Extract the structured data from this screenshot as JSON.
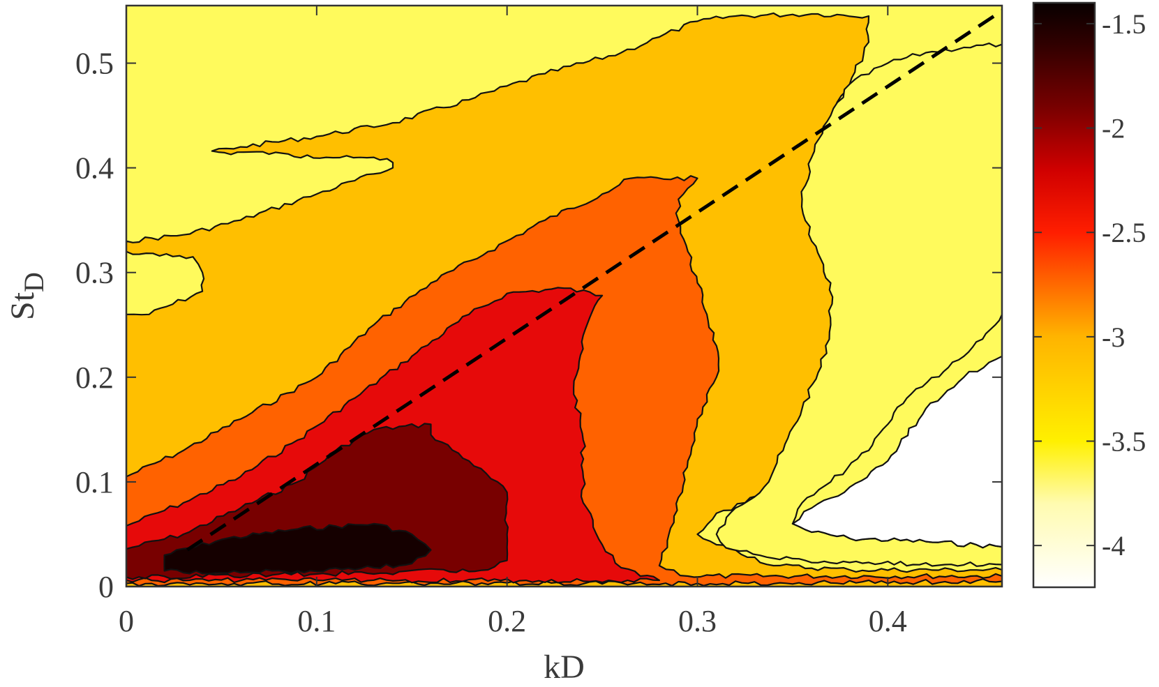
{
  "chart_data": {
    "type": "heatmap",
    "subtype": "filled-contour",
    "xlabel": "kD",
    "ylabel_main": "St",
    "ylabel_sub": "D",
    "xlim": [
      0,
      0.46
    ],
    "ylim": [
      0,
      0.555
    ],
    "x_ticks": [
      {
        "value": 0,
        "label": "0"
      },
      {
        "value": 0.1,
        "label": "0.1"
      },
      {
        "value": 0.2,
        "label": "0.2"
      },
      {
        "value": 0.3,
        "label": "0.3"
      },
      {
        "value": 0.4,
        "label": "0.4"
      }
    ],
    "y_ticks": [
      {
        "value": 0,
        "label": "0"
      },
      {
        "value": 0.1,
        "label": "0.1"
      },
      {
        "value": 0.2,
        "label": "0.2"
      },
      {
        "value": 0.3,
        "label": "0.3"
      },
      {
        "value": 0.4,
        "label": "0.4"
      },
      {
        "value": 0.5,
        "label": "0.5"
      }
    ],
    "colorbar": {
      "range": [
        -4.2,
        -1.4
      ],
      "ticks": [
        {
          "value": -1.5,
          "label": "-1.5"
        },
        {
          "value": -2,
          "label": "-2"
        },
        {
          "value": -2.5,
          "label": "-2.5"
        },
        {
          "value": -3,
          "label": "-3"
        },
        {
          "value": -3.5,
          "label": "-3.5"
        },
        {
          "value": -4,
          "label": "-4"
        }
      ],
      "colormap": "hot-reversed",
      "placement": "right"
    },
    "levels": [
      {
        "level": -4.0,
        "color": "#ffffff"
      },
      {
        "level": -3.5,
        "color": "#fffa5c"
      },
      {
        "level": -3.0,
        "color": "#ffbf00"
      },
      {
        "level": -2.5,
        "color": "#ff6200"
      },
      {
        "level": -2.0,
        "color": "#e60a0a"
      },
      {
        "level": -1.75,
        "color": "#780000"
      },
      {
        "level": -1.5,
        "color": "#150000"
      }
    ],
    "contour_bands": [
      {
        "level_index": 2,
        "boundary": [
          [
            0,
            0.26
          ],
          [
            0.012,
            0.26
          ],
          [
            0.04,
            0.282
          ],
          [
            0.04,
            0.3
          ],
          [
            0.035,
            0.315
          ],
          [
            0,
            0.32
          ],
          [
            0,
            0.33
          ],
          [
            0.03,
            0.336
          ],
          [
            0.06,
            0.35
          ],
          [
            0.1,
            0.375
          ],
          [
            0.14,
            0.4
          ],
          [
            0.14,
            0.405
          ],
          [
            0.13,
            0.41
          ],
          [
            0.105,
            0.41
          ],
          [
            0.075,
            0.413
          ],
          [
            0.045,
            0.416
          ],
          [
            0.06,
            0.42
          ],
          [
            0.1,
            0.43
          ],
          [
            0.14,
            0.443
          ],
          [
            0.18,
            0.465
          ],
          [
            0.22,
            0.49
          ],
          [
            0.26,
            0.51
          ],
          [
            0.28,
            0.525
          ],
          [
            0.3,
            0.54
          ],
          [
            0.32,
            0.545
          ],
          [
            0.36,
            0.547
          ],
          [
            0.39,
            0.545
          ],
          [
            0.39,
            0.52
          ],
          [
            0.38,
            0.48
          ],
          [
            0.37,
            0.45
          ],
          [
            0.36,
            0.4
          ],
          [
            0.36,
            0.36
          ],
          [
            0.365,
            0.32
          ],
          [
            0.375,
            0.28
          ],
          [
            0.38,
            0.25
          ],
          [
            0.375,
            0.22
          ],
          [
            0.365,
            0.19
          ],
          [
            0.35,
            0.14
          ],
          [
            0.34,
            0.1
          ],
          [
            0.325,
            0.08
          ],
          [
            0.31,
            0.07
          ],
          [
            0.3,
            0.05
          ],
          [
            0.31,
            0.04
          ],
          [
            0.32,
            0.035
          ],
          [
            0.34,
            0.02
          ],
          [
            0.38,
            0.016
          ],
          [
            0.46,
            0.016
          ],
          [
            0.46,
            0
          ],
          [
            0,
            0
          ]
        ]
      },
      {
        "level_index": 1,
        "boundary": [
          [
            0.35,
            0.06
          ],
          [
            0.36,
            0.052
          ],
          [
            0.38,
            0.046
          ],
          [
            0.42,
            0.043
          ],
          [
            0.46,
            0.038
          ],
          [
            0.46,
            0.021
          ],
          [
            0.43,
            0.021
          ],
          [
            0.38,
            0.023
          ],
          [
            0.34,
            0.027
          ],
          [
            0.315,
            0.037
          ],
          [
            0.31,
            0.05
          ],
          [
            0.32,
            0.075
          ],
          [
            0.335,
            0.095
          ],
          [
            0.345,
            0.13
          ],
          [
            0.355,
            0.17
          ],
          [
            0.365,
            0.21
          ],
          [
            0.37,
            0.25
          ],
          [
            0.37,
            0.29
          ],
          [
            0.36,
            0.33
          ],
          [
            0.355,
            0.37
          ],
          [
            0.36,
            0.41
          ],
          [
            0.37,
            0.45
          ],
          [
            0.38,
            0.48
          ],
          [
            0.4,
            0.5
          ],
          [
            0.42,
            0.51
          ],
          [
            0.44,
            0.515
          ],
          [
            0.46,
            0.518
          ],
          [
            0.46,
            0.26
          ],
          [
            0.44,
            0.22
          ],
          [
            0.41,
            0.18
          ],
          [
            0.39,
            0.13
          ],
          [
            0.37,
            0.1
          ],
          [
            0.355,
            0.08
          ]
        ]
      },
      {
        "level_index": 0,
        "boundary": [
          [
            0.35,
            0.06
          ],
          [
            0.36,
            0.052
          ],
          [
            0.38,
            0.046
          ],
          [
            0.42,
            0.043
          ],
          [
            0.46,
            0.038
          ],
          [
            0.46,
            0.22
          ],
          [
            0.44,
            0.2
          ],
          [
            0.42,
            0.17
          ],
          [
            0.4,
            0.12
          ],
          [
            0.38,
            0.095
          ],
          [
            0.36,
            0.075
          ]
        ]
      },
      {
        "level_index": 3,
        "boundary": [
          [
            0,
            0.06
          ],
          [
            0,
            0.105
          ],
          [
            0.03,
            0.13
          ],
          [
            0.06,
            0.16
          ],
          [
            0.1,
            0.2
          ],
          [
            0.13,
            0.25
          ],
          [
            0.16,
            0.29
          ],
          [
            0.19,
            0.32
          ],
          [
            0.22,
            0.35
          ],
          [
            0.25,
            0.375
          ],
          [
            0.265,
            0.39
          ],
          [
            0.3,
            0.39
          ],
          [
            0.29,
            0.37
          ],
          [
            0.29,
            0.35
          ],
          [
            0.295,
            0.32
          ],
          [
            0.3,
            0.29
          ],
          [
            0.305,
            0.26
          ],
          [
            0.31,
            0.23
          ],
          [
            0.31,
            0.2
          ],
          [
            0.3,
            0.16
          ],
          [
            0.295,
            0.12
          ],
          [
            0.29,
            0.085
          ],
          [
            0.285,
            0.05
          ],
          [
            0.28,
            0.02
          ],
          [
            0.295,
            0.01
          ],
          [
            0.46,
            0.01
          ],
          [
            0.46,
            0.005
          ],
          [
            0.3,
            0.003
          ],
          [
            0,
            0.003
          ]
        ]
      },
      {
        "level_index": 4,
        "boundary": [
          [
            0,
            0.037
          ],
          [
            0,
            0.058
          ],
          [
            0.03,
            0.08
          ],
          [
            0.06,
            0.105
          ],
          [
            0.09,
            0.14
          ],
          [
            0.12,
            0.18
          ],
          [
            0.15,
            0.22
          ],
          [
            0.18,
            0.26
          ],
          [
            0.2,
            0.28
          ],
          [
            0.23,
            0.285
          ],
          [
            0.25,
            0.278
          ],
          [
            0.24,
            0.24
          ],
          [
            0.235,
            0.19
          ],
          [
            0.24,
            0.14
          ],
          [
            0.24,
            0.08
          ],
          [
            0.25,
            0.04
          ],
          [
            0.26,
            0.018
          ],
          [
            0.27,
            0.01
          ],
          [
            0.28,
            0.006
          ],
          [
            0.1,
            0.006
          ],
          [
            0,
            0.006
          ]
        ]
      },
      {
        "level_index": 5,
        "boundary": [
          [
            0,
            0.012
          ],
          [
            0,
            0.036
          ],
          [
            0.03,
            0.05
          ],
          [
            0.06,
            0.075
          ],
          [
            0.09,
            0.1
          ],
          [
            0.11,
            0.13
          ],
          [
            0.13,
            0.15
          ],
          [
            0.16,
            0.155
          ],
          [
            0.16,
            0.145
          ],
          [
            0.18,
            0.12
          ],
          [
            0.2,
            0.09
          ],
          [
            0.2,
            0.05
          ],
          [
            0.2,
            0.025
          ],
          [
            0.19,
            0.016
          ],
          [
            0.1,
            0.012
          ],
          [
            0,
            0.009
          ]
        ]
      },
      {
        "level_index": 6,
        "boundary": [
          [
            0.02,
            0.015
          ],
          [
            0.02,
            0.03
          ],
          [
            0.05,
            0.045
          ],
          [
            0.09,
            0.055
          ],
          [
            0.13,
            0.06
          ],
          [
            0.15,
            0.05
          ],
          [
            0.16,
            0.035
          ],
          [
            0.15,
            0.022
          ],
          [
            0.13,
            0.018
          ],
          [
            0.09,
            0.015
          ],
          [
            0.05,
            0.013
          ]
        ]
      }
    ],
    "reference_line": {
      "style": "dashed",
      "points": [
        [
          0.032,
          0.035
        ],
        [
          0.46,
          0.55
        ]
      ]
    }
  }
}
